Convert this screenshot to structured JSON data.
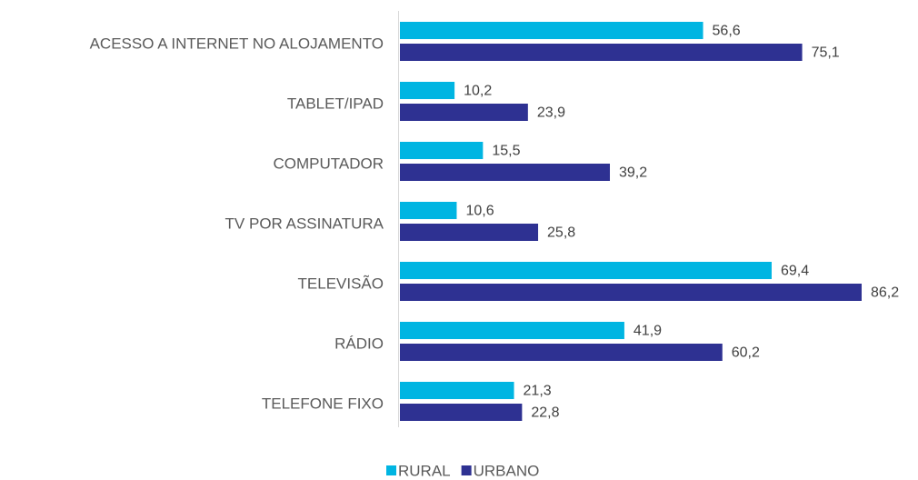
{
  "chart_data": {
    "type": "hbar",
    "categories": [
      "ACESSO A INTERNET NO ALOJAMENTO",
      "TABLET/IPAD",
      "COMPUTADOR",
      "TV POR ASSINATURA",
      "TELEVISÃO",
      "RÁDIO",
      "TELEFONE FIXO"
    ],
    "series": [
      {
        "name": "RURAL",
        "color": "#00b5e2",
        "values": [
          56.6,
          10.2,
          15.5,
          10.6,
          69.4,
          41.9,
          21.3
        ],
        "value_labels": [
          "56,6",
          "10,2",
          "15,5",
          "10,6",
          "69,4",
          "41,9",
          "21,3"
        ]
      },
      {
        "name": "URBANO",
        "color": "#2e3192",
        "values": [
          75.1,
          23.9,
          39.2,
          25.8,
          86.2,
          60.2,
          22.8
        ],
        "value_labels": [
          "75,1",
          "23,9",
          "39,2",
          "25,8",
          "86,2",
          "60,2",
          "22,8"
        ]
      }
    ],
    "legend": "bottom"
  }
}
